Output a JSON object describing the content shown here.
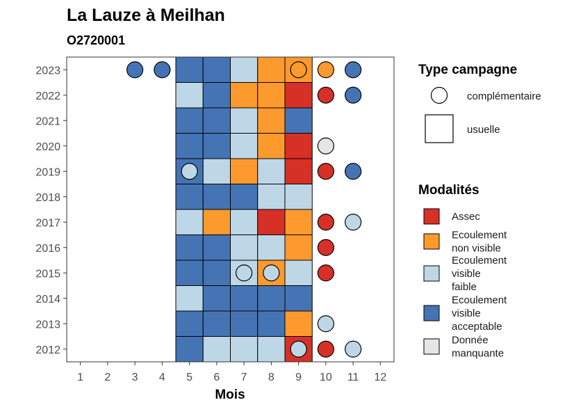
{
  "chart_data": {
    "type": "heatmap",
    "title": "La Lauze à Meilhan",
    "subtitle": "O2720001",
    "xlabel": "Mois",
    "ylabel": "",
    "x_ticks": [
      "1",
      "2",
      "3",
      "4",
      "5",
      "6",
      "7",
      "8",
      "9",
      "10",
      "11",
      "12"
    ],
    "y_ticks": [
      "2023",
      "2022",
      "2021",
      "2020",
      "2019",
      "2018",
      "2017",
      "2016",
      "2015",
      "2014",
      "2013",
      "2012"
    ],
    "xlim": [
      0.5,
      12.5
    ],
    "ylim": [
      2011.5,
      2023.5
    ],
    "grid": false,
    "legend_position": "right",
    "legends": {
      "shape": {
        "title": "Type campagne",
        "items": [
          {
            "key": "complementaire",
            "label": "complémentaire",
            "shape": "circle"
          },
          {
            "key": "usuelle",
            "label": "usuelle",
            "shape": "square"
          }
        ]
      },
      "fill": {
        "title": "Modalités",
        "items": [
          {
            "key": "assec",
            "lines": [
              "Assec"
            ],
            "color": "#d73027"
          },
          {
            "key": "enonvisible",
            "lines": [
              "Ecoulement",
              "non visible"
            ],
            "color": "#fd9a2e"
          },
          {
            "key": "efaible",
            "lines": [
              "Ecoulement",
              "visible",
              "faible"
            ],
            "color": "#bed7e7"
          },
          {
            "key": "eacceptable",
            "lines": [
              "Ecoulement",
              "visible",
              "acceptable"
            ],
            "color": "#4574b4"
          },
          {
            "key": "manquante",
            "lines": [
              "Donnée",
              "manquante"
            ],
            "color": "#e5e5e5"
          }
        ]
      }
    },
    "usuelle": [
      {
        "year": 2023,
        "values": {
          "5": "eacceptable",
          "6": "eacceptable",
          "7": "efaible",
          "8": "enonvisible",
          "9": "enonvisible"
        }
      },
      {
        "year": 2022,
        "values": {
          "5": "efaible",
          "6": "eacceptable",
          "7": "enonvisible",
          "8": "enonvisible",
          "9": "assec"
        }
      },
      {
        "year": 2021,
        "values": {
          "5": "eacceptable",
          "6": "eacceptable",
          "7": "efaible",
          "8": "enonvisible",
          "9": "eacceptable"
        }
      },
      {
        "year": 2020,
        "values": {
          "5": "eacceptable",
          "6": "eacceptable",
          "7": "efaible",
          "8": "enonvisible",
          "9": "assec"
        }
      },
      {
        "year": 2019,
        "values": {
          "5": "eacceptable",
          "6": "efaible",
          "7": "enonvisible",
          "8": "efaible",
          "9": "assec"
        }
      },
      {
        "year": 2018,
        "values": {
          "5": "eacceptable",
          "6": "eacceptable",
          "7": "eacceptable",
          "8": "efaible",
          "9": "efaible"
        }
      },
      {
        "year": 2017,
        "values": {
          "5": "efaible",
          "6": "enonvisible",
          "7": "efaible",
          "8": "assec",
          "9": "enonvisible"
        }
      },
      {
        "year": 2016,
        "values": {
          "5": "eacceptable",
          "6": "eacceptable",
          "7": "efaible",
          "8": "efaible",
          "9": "enonvisible"
        }
      },
      {
        "year": 2015,
        "values": {
          "5": "eacceptable",
          "6": "eacceptable",
          "7": "efaible",
          "8": "enonvisible",
          "9": "efaible"
        }
      },
      {
        "year": 2014,
        "values": {
          "5": "efaible",
          "6": "eacceptable",
          "7": "eacceptable",
          "8": "eacceptable",
          "9": "eacceptable"
        }
      },
      {
        "year": 2013,
        "values": {
          "5": "eacceptable",
          "6": "eacceptable",
          "7": "eacceptable",
          "8": "eacceptable",
          "9": "enonvisible"
        }
      },
      {
        "year": 2012,
        "values": {
          "5": "eacceptable",
          "6": "efaible",
          "7": "efaible",
          "8": "efaible",
          "9": "assec"
        }
      }
    ],
    "complementaire": [
      {
        "year": 2023,
        "month": 3,
        "value": "eacceptable"
      },
      {
        "year": 2023,
        "month": 4,
        "value": "eacceptable"
      },
      {
        "year": 2023,
        "month": 9,
        "value": "enonvisible"
      },
      {
        "year": 2023,
        "month": 10,
        "value": "enonvisible"
      },
      {
        "year": 2023,
        "month": 11,
        "value": "eacceptable"
      },
      {
        "year": 2022,
        "month": 10,
        "value": "assec"
      },
      {
        "year": 2022,
        "month": 11,
        "value": "eacceptable"
      },
      {
        "year": 2020,
        "month": 10,
        "value": "manquante"
      },
      {
        "year": 2019,
        "month": 5,
        "value": "efaible"
      },
      {
        "year": 2019,
        "month": 10,
        "value": "assec"
      },
      {
        "year": 2019,
        "month": 11,
        "value": "eacceptable"
      },
      {
        "year": 2017,
        "month": 10,
        "value": "assec"
      },
      {
        "year": 2017,
        "month": 11,
        "value": "efaible"
      },
      {
        "year": 2016,
        "month": 10,
        "value": "assec"
      },
      {
        "year": 2015,
        "month": 7,
        "value": "efaible"
      },
      {
        "year": 2015,
        "month": 8,
        "value": "efaible"
      },
      {
        "year": 2015,
        "month": 10,
        "value": "assec"
      },
      {
        "year": 2013,
        "month": 10,
        "value": "efaible"
      },
      {
        "year": 2012,
        "month": 9,
        "value": "efaible"
      },
      {
        "year": 2012,
        "month": 10,
        "value": "assec"
      },
      {
        "year": 2012,
        "month": 11,
        "value": "efaible"
      }
    ]
  }
}
